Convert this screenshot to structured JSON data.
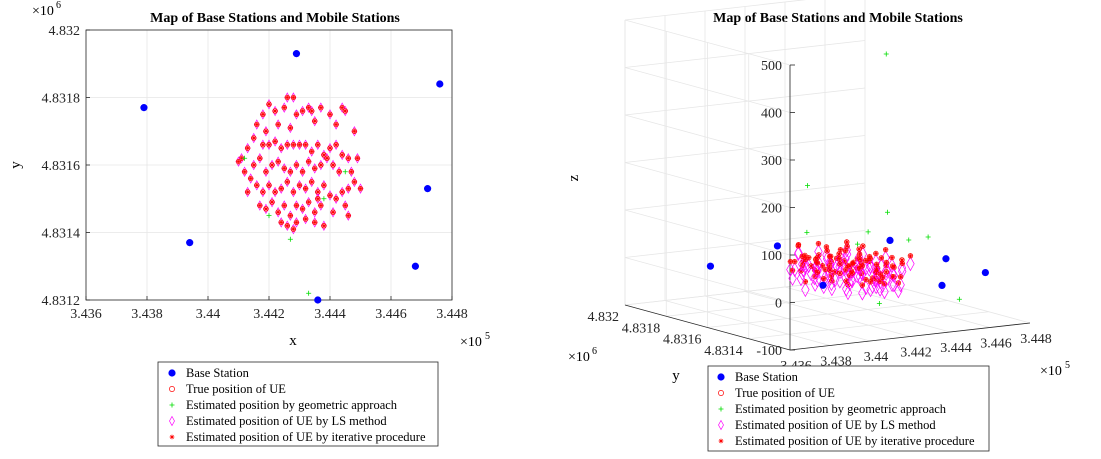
{
  "legend_entries": [
    {
      "label": "Base Station",
      "marker": "dot",
      "color": "#0000ff"
    },
    {
      "label": "True position of UE",
      "marker": "circle",
      "color": "#ff0000"
    },
    {
      "label": "Estimated position by geometric approach",
      "marker": "plus",
      "color": "#00dd00"
    },
    {
      "label": "Estimated position of UE by LS method",
      "marker": "diamond",
      "color": "#ff00ff"
    },
    {
      "label": "Estimated position of UE by iterative procedure",
      "marker": "star",
      "color": "#ff0000"
    }
  ],
  "chart_data": [
    {
      "type": "scatter",
      "title": "Map of Base Stations and Mobile Stations",
      "xlabel": "x",
      "ylabel": "y",
      "x_exponent_label": "×10",
      "x_exponent": "5",
      "y_exponent_label": "×10",
      "y_exponent": "6",
      "xlim": [
        3.436,
        3.448
      ],
      "ylim": [
        4.8312,
        4.832
      ],
      "xticks": [
        "3.436",
        "3.438",
        "3.44",
        "3.442",
        "3.444",
        "3.446",
        "3.448"
      ],
      "yticks": [
        "4.8312",
        "4.8314",
        "4.8316",
        "4.8318",
        "4.832"
      ],
      "grid": true,
      "legend_position": "below",
      "series": [
        {
          "name": "Base Station",
          "color": "#0000ff",
          "points": [
            [
              3.4379,
              4.83177
            ],
            [
              3.4394,
              4.83137
            ],
            [
              3.4429,
              4.83193
            ],
            [
              3.4436,
              4.8312
            ],
            [
              3.4468,
              4.8313
            ],
            [
              3.4472,
              4.83153
            ],
            [
              3.4476,
              4.83184
            ]
          ]
        },
        {
          "name": "Estimated position by geometric approach",
          "color": "#00dd00",
          "points": [
            [
              3.4427,
              4.83138
            ],
            [
              3.4433,
              4.83122
            ],
            [
              3.442,
              4.83145
            ],
            [
              3.4438,
              4.8315
            ],
            [
              3.4412,
              4.83162
            ],
            [
              3.4445,
              4.83158
            ]
          ]
        }
      ],
      "ue_points": [
        [
          3.4411,
          4.83162
        ],
        [
          3.4413,
          4.83165
        ],
        [
          3.4415,
          4.83168
        ],
        [
          3.4412,
          4.83158
        ],
        [
          3.4416,
          4.83172
        ],
        [
          3.4418,
          4.83175
        ],
        [
          3.4419,
          4.8317
        ],
        [
          3.442,
          4.83178
        ],
        [
          3.4422,
          4.83176
        ],
        [
          3.4423,
          4.83172
        ],
        [
          3.4425,
          4.83177
        ],
        [
          3.4426,
          4.8318
        ],
        [
          3.4428,
          4.8318
        ],
        [
          3.4429,
          4.83175
        ],
        [
          3.4427,
          4.83171
        ],
        [
          3.4431,
          4.83176
        ],
        [
          3.4433,
          4.83177
        ],
        [
          3.4435,
          4.83173
        ],
        [
          3.4434,
          4.83176
        ],
        [
          3.4437,
          4.83177
        ],
        [
          3.444,
          4.83175
        ],
        [
          3.4442,
          4.83172
        ],
        [
          3.4444,
          4.83177
        ],
        [
          3.4445,
          4.83176
        ],
        [
          3.4448,
          4.8317
        ],
        [
          3.4418,
          4.83166
        ],
        [
          3.442,
          4.83166
        ],
        [
          3.4422,
          4.83167
        ],
        [
          3.4424,
          4.83165
        ],
        [
          3.4426,
          4.83166
        ],
        [
          3.4428,
          4.83166
        ],
        [
          3.443,
          4.83166
        ],
        [
          3.4432,
          4.83166
        ],
        [
          3.4434,
          4.83164
        ],
        [
          3.4436,
          4.83166
        ],
        [
          3.4438,
          4.83163
        ],
        [
          3.444,
          4.83165
        ],
        [
          3.4442,
          4.83166
        ],
        [
          3.4444,
          4.83163
        ],
        [
          3.4446,
          4.83162
        ],
        [
          3.4415,
          4.8316
        ],
        [
          3.4417,
          4.83162
        ],
        [
          3.4419,
          4.83158
        ],
        [
          3.4421,
          4.8316
        ],
        [
          3.4423,
          4.83161
        ],
        [
          3.4425,
          4.83159
        ],
        [
          3.4427,
          4.83158
        ],
        [
          3.4429,
          4.8316
        ],
        [
          3.4431,
          4.83158
        ],
        [
          3.4433,
          4.83161
        ],
        [
          3.4435,
          4.83159
        ],
        [
          3.4437,
          4.8316
        ],
        [
          3.4439,
          4.83162
        ],
        [
          3.4441,
          4.8316
        ],
        [
          3.4443,
          4.83158
        ],
        [
          3.4447,
          4.83158
        ],
        [
          3.4449,
          4.83162
        ],
        [
          3.4416,
          4.83154
        ],
        [
          3.4418,
          4.83152
        ],
        [
          3.442,
          4.83154
        ],
        [
          3.4422,
          4.83152
        ],
        [
          3.4424,
          4.83153
        ],
        [
          3.4426,
          4.83155
        ],
        [
          3.4428,
          4.83152
        ],
        [
          3.443,
          4.83154
        ],
        [
          3.4432,
          4.83153
        ],
        [
          3.4434,
          4.83155
        ],
        [
          3.4436,
          4.83152
        ],
        [
          3.4438,
          4.83154
        ],
        [
          3.444,
          4.83151
        ],
        [
          3.4442,
          4.8315
        ],
        [
          3.4444,
          4.83152
        ],
        [
          3.4446,
          4.83153
        ],
        [
          3.4448,
          4.83155
        ],
        [
          3.445,
          4.83153
        ],
        [
          3.4417,
          4.83148
        ],
        [
          3.4419,
          4.83147
        ],
        [
          3.4421,
          4.83149
        ],
        [
          3.4423,
          4.83146
        ],
        [
          3.4425,
          4.83148
        ],
        [
          3.4427,
          4.83145
        ],
        [
          3.4429,
          4.83148
        ],
        [
          3.4431,
          4.83147
        ],
        [
          3.4433,
          4.83149
        ],
        [
          3.4435,
          4.83146
        ],
        [
          3.4437,
          4.83148
        ],
        [
          3.4441,
          4.83146
        ],
        [
          3.4445,
          4.83148
        ],
        [
          3.4424,
          4.83143
        ],
        [
          3.4426,
          4.83142
        ],
        [
          3.4429,
          4.83143
        ],
        [
          3.4432,
          4.83144
        ],
        [
          3.4435,
          4.83143
        ],
        [
          3.4438,
          4.83142
        ],
        [
          3.4446,
          4.83145
        ],
        [
          3.4413,
          4.83152
        ],
        [
          3.4414,
          4.83156
        ],
        [
          3.441,
          4.83161
        ],
        [
          3.4428,
          4.83141
        ],
        [
          3.4436,
          4.8315
        ]
      ]
    },
    {
      "type": "scatter",
      "title": "Map of Base Stations and Mobile Stations",
      "xlabel": "",
      "ylabel": "y",
      "zlabel": "z",
      "x_exponent_label": "×10",
      "x_exponent": "5",
      "y_exponent_label": "×10",
      "y_exponent": "6",
      "xlim": [
        3.436,
        3.448
      ],
      "ylim": [
        4.8312,
        4.832
      ],
      "zlim": [
        -100,
        500
      ],
      "xticks": [
        "3.436",
        "3.438",
        "3.44",
        "3.442",
        "3.444",
        "3.446",
        "3.448"
      ],
      "yticks": [
        "4.8314",
        "4.8316",
        "4.8318",
        "4.832"
      ],
      "zticks": [
        "-100",
        "0",
        "100",
        "200",
        "300",
        "400",
        "500"
      ],
      "grid": true,
      "legend_position": "below",
      "series": [
        {
          "name": "Base Station",
          "color": "#0000ff",
          "points": [
            [
              3.4379,
              4.83177,
              0
            ],
            [
              3.4394,
              4.83137,
              0
            ],
            [
              3.4429,
              4.83193,
              0
            ],
            [
              3.4436,
              4.8312,
              0
            ],
            [
              3.4468,
              4.8313,
              0
            ],
            [
              3.4472,
              4.83153,
              0
            ],
            [
              3.4476,
              4.83184,
              0
            ]
          ]
        },
        {
          "name": "Estimated position by geometric approach",
          "color": "#00dd00",
          "points": [
            [
              3.447,
              4.8318,
              400
            ],
            [
              3.441,
              4.8316,
              175
            ],
            [
              3.445,
              4.8316,
              100
            ],
            [
              3.443,
              4.8315,
              80
            ],
            [
              3.442,
              4.8317,
              60
            ],
            [
              3.444,
              4.8314,
              70
            ],
            [
              3.446,
              4.8315,
              55
            ],
            [
              3.4415,
              4.8313,
              -40
            ],
            [
              3.4455,
              4.8313,
              -50
            ],
            [
              3.4435,
              4.8316,
              40
            ]
          ]
        }
      ]
    }
  ]
}
